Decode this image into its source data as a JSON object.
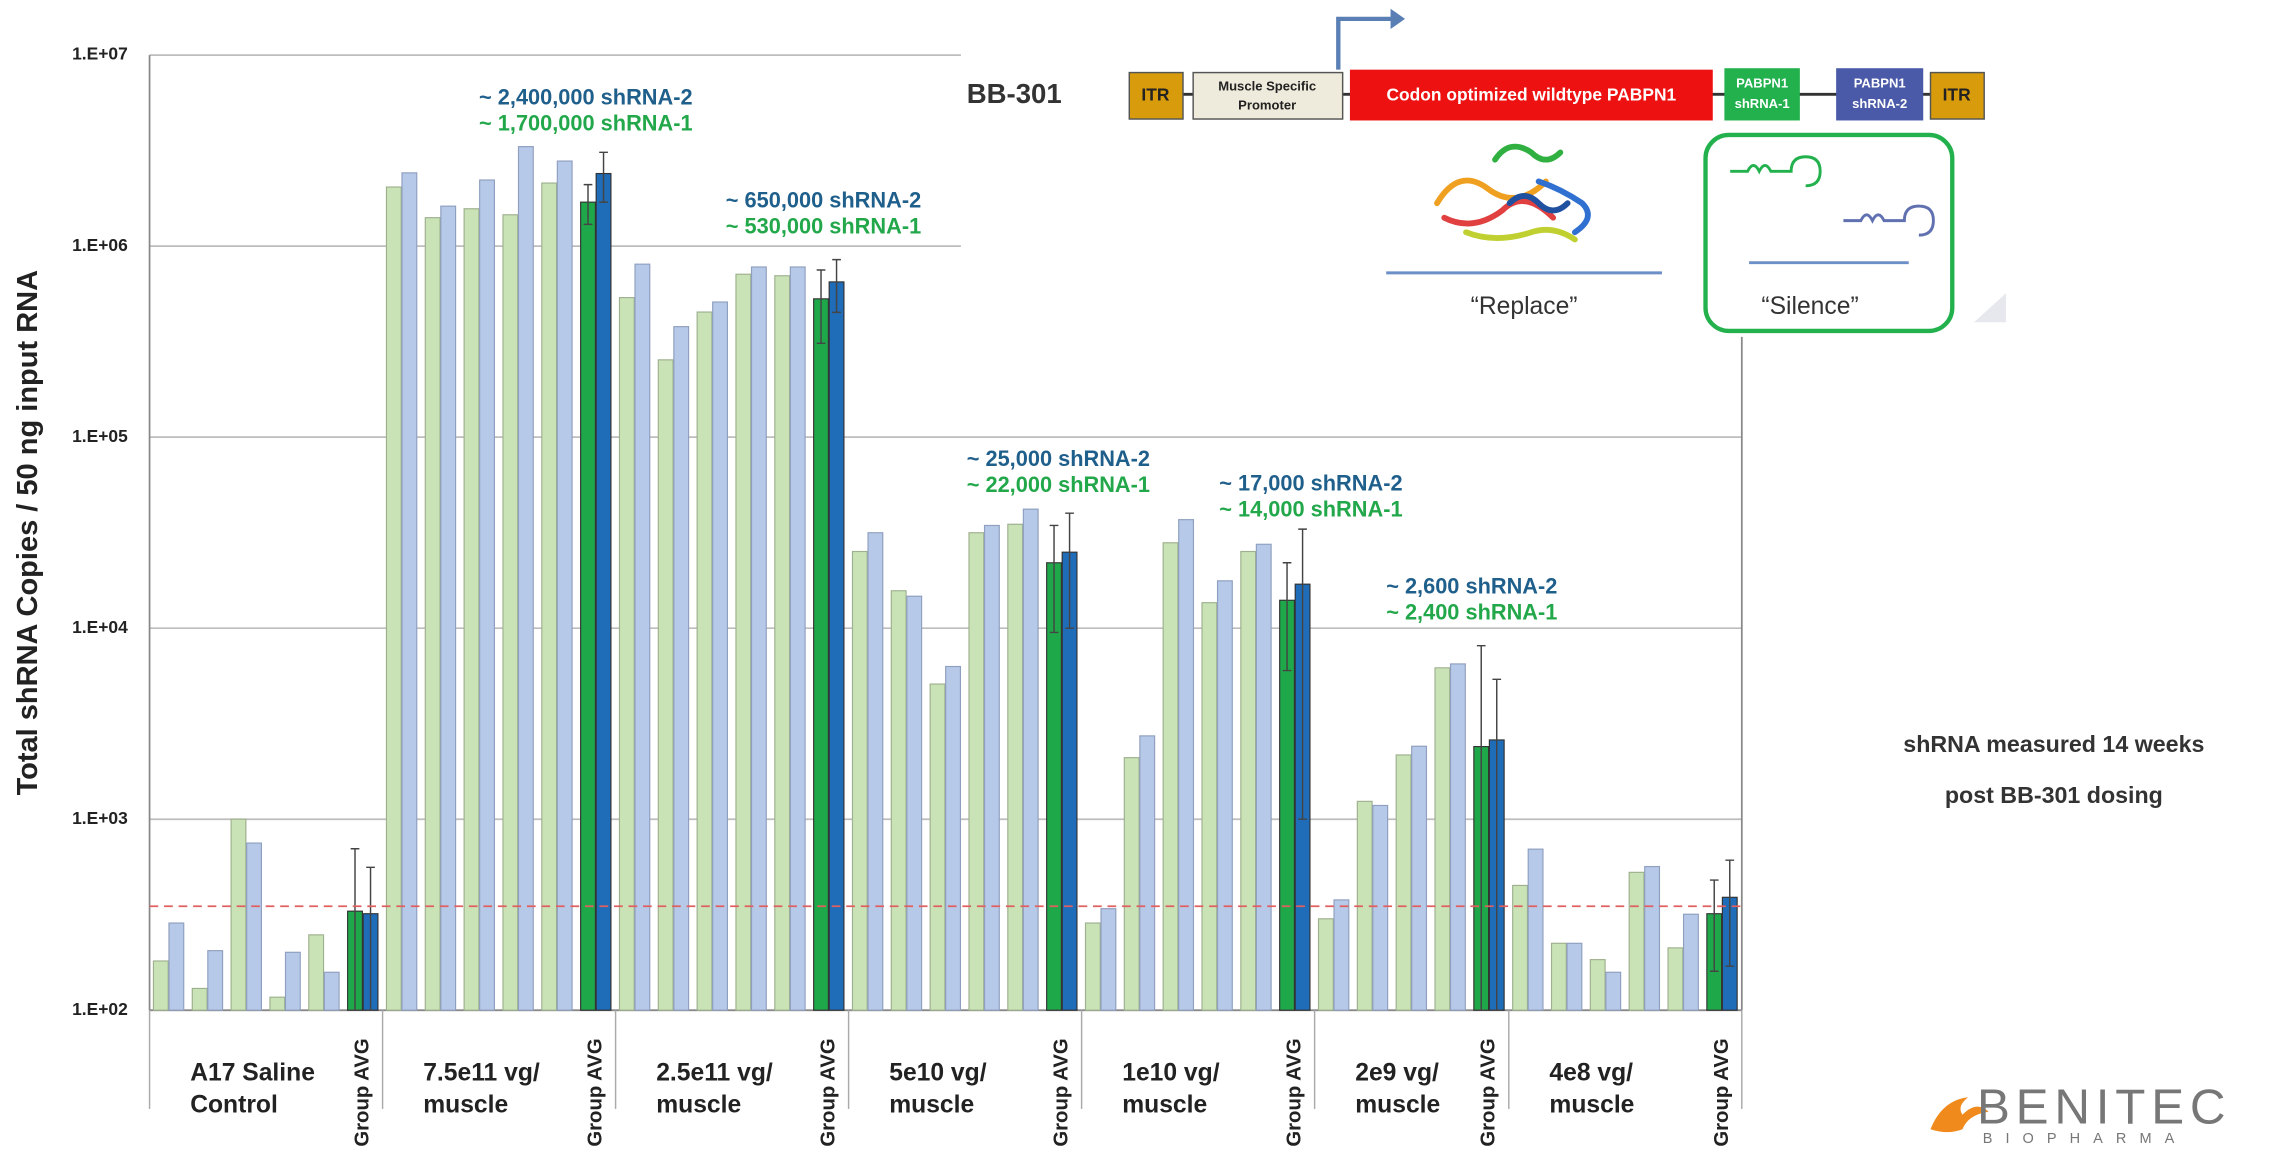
{
  "chart_data": {
    "type": "grouped_bar",
    "log_scale": true,
    "ylabel": "Total shRNA Copies / 50 ng input RNA",
    "ylim": [
      100,
      10000000
    ],
    "yticks": [
      {
        "value": 100,
        "label": "1.E+02"
      },
      {
        "value": 1000,
        "label": "1.E+03"
      },
      {
        "value": 10000,
        "label": "1.E+04"
      },
      {
        "value": 100000,
        "label": "1.E+05"
      },
      {
        "value": 1000000,
        "label": "1.E+06"
      },
      {
        "value": 10000000,
        "label": "1.E+07"
      }
    ],
    "grid": true,
    "reference_line": 350,
    "reference_color": "#e06060",
    "colors": {
      "individual": [
        "#c9e3b6",
        "#b7c9e8"
      ],
      "average": [
        "#1fa84a",
        "#1f6cb8"
      ]
    },
    "annotation_colors": [
      "#1f5f8b",
      "#22a84a"
    ],
    "groups": [
      {
        "label": [
          "A17 Saline",
          "Control"
        ],
        "avg_label": "Group AVG",
        "shRNA1": [
          181,
          130,
          1000,
          117,
          248
        ],
        "shRNA2": [
          286,
          205,
          750,
          201,
          158
        ],
        "avg": [
          330,
          320
        ],
        "err": [
          370,
          240
        ]
      },
      {
        "label": [
          "7.5e11 vg/",
          "muscle"
        ],
        "avg_label": "Group AVG",
        "shRNA1": [
          2040000,
          1410000,
          1570000,
          1460000,
          2140000
        ],
        "shRNA2": [
          2420000,
          1620000,
          2220000,
          3320000,
          2790000
        ],
        "avg": [
          1700000,
          2400000
        ],
        "err": [
          400000,
          700000
        ],
        "annotation": [
          "~ 2,400,000 shRNA-2",
          "~ 1,700,000 shRNA-1"
        ]
      },
      {
        "label": [
          "2.5e11 vg/",
          "muscle"
        ],
        "avg_label": "Group AVG",
        "shRNA1": [
          538000,
          254000,
          452000,
          713000,
          700000
        ],
        "shRNA2": [
          805000,
          379000,
          510000,
          778000,
          778000
        ],
        "avg": [
          530000,
          650000
        ],
        "err": [
          220000,
          200000
        ],
        "annotation": [
          "~ 650,000 shRNA-2",
          "~ 530,000 shRNA-1"
        ]
      },
      {
        "label": [
          "5e10 vg/",
          "muscle"
        ],
        "avg_label": "Group AVG",
        "shRNA1": [
          25200,
          15700,
          5100,
          31600,
          35000
        ],
        "shRNA2": [
          31600,
          14700,
          6300,
          34500,
          42000
        ],
        "avg": [
          22000,
          25000
        ],
        "err": [
          12500,
          15000
        ],
        "annotation": [
          "~ 25,000 shRNA-2",
          "~ 22,000 shRNA-1"
        ]
      },
      {
        "label": [
          "1e10 vg/",
          "muscle"
        ],
        "avg_label": "Group AVG",
        "shRNA1": [
          286,
          2100,
          28000,
          13600,
          25200
        ],
        "shRNA2": [
          340,
          2730,
          37000,
          17700,
          27500
        ],
        "avg": [
          14000,
          17000
        ],
        "err": [
          8000,
          16000
        ],
        "annotation": [
          "~ 17,000 shRNA-2",
          "~ 14,000 shRNA-1"
        ]
      },
      {
        "label": [
          "2e9 vg/",
          "muscle"
        ],
        "avg_label": "Group AVG",
        "shRNA1": [
          301,
          1240,
          2170,
          6200
        ],
        "shRNA2": [
          378,
          1180,
          2410,
          6500
        ],
        "avg": [
          2400,
          2600
        ],
        "err": [
          5700,
          2800
        ],
        "annotation": [
          "~ 2,600 shRNA-2",
          "~ 2,400 shRNA-1"
        ]
      },
      {
        "label": [
          "4e8 vg/",
          "muscle"
        ],
        "avg_label": "Group AVG",
        "shRNA1": [
          450,
          224,
          184,
          527,
          212
        ],
        "shRNA2": [
          697,
          224,
          158,
          565,
          318
        ],
        "avg": [
          320,
          390
        ],
        "err": [
          160,
          220
        ]
      }
    ]
  },
  "construct": {
    "title": "BB-301",
    "elements": [
      [
        "ITR"
      ],
      [
        "Muscle Specific",
        "Promoter"
      ],
      [
        "Codon optimized wildtype PABPN1"
      ],
      [
        "PABPN1",
        "shRNA-1"
      ],
      [
        "PABPN1",
        "shRNA-2"
      ],
      [
        "ITR"
      ]
    ],
    "replace": "“Replace”",
    "silence": "“Silence”"
  },
  "note": [
    "shRNA measured 14 weeks",
    "post BB-301 dosing"
  ],
  "logo": {
    "name": "BENITEC",
    "sub": "BIOPHARMA"
  }
}
